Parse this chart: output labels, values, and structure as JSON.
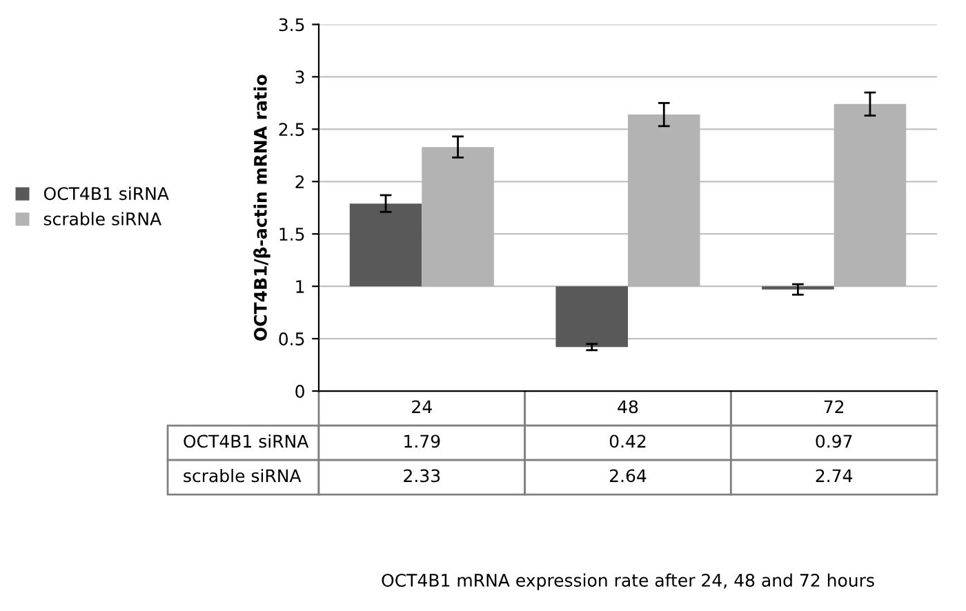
{
  "chart_data": {
    "type": "bar",
    "title": "OCT4B1 mRNA expression rate after 24, 48 and 72 hours",
    "ylabel": "OCT4B1/β-actin mRNA ratio",
    "categories": [
      "24",
      "48",
      "72"
    ],
    "series": [
      {
        "name": "OCT4B1 siRNA",
        "color": "#595959",
        "base": [
          1,
          1,
          1
        ],
        "values": [
          0.79,
          -0.58,
          -0.03
        ],
        "errors": [
          0.08,
          0.03,
          0.05
        ],
        "value_labels": [
          "1.79",
          "0.42",
          "0.97"
        ]
      },
      {
        "name": "scrable siRNA",
        "color": "#b3b3b3",
        "base": [
          1,
          1,
          1
        ],
        "values": [
          1.33,
          1.64,
          1.74
        ],
        "errors": [
          0.1,
          0.11,
          0.11
        ],
        "value_labels": [
          "2.33",
          "2.64",
          "2.74"
        ]
      }
    ],
    "ylim": [
      0,
      3.5
    ],
    "yticks": [
      0,
      0.5,
      1,
      1.5,
      2,
      2.5,
      3,
      3.5
    ],
    "grid": "y",
    "legend": "left"
  }
}
